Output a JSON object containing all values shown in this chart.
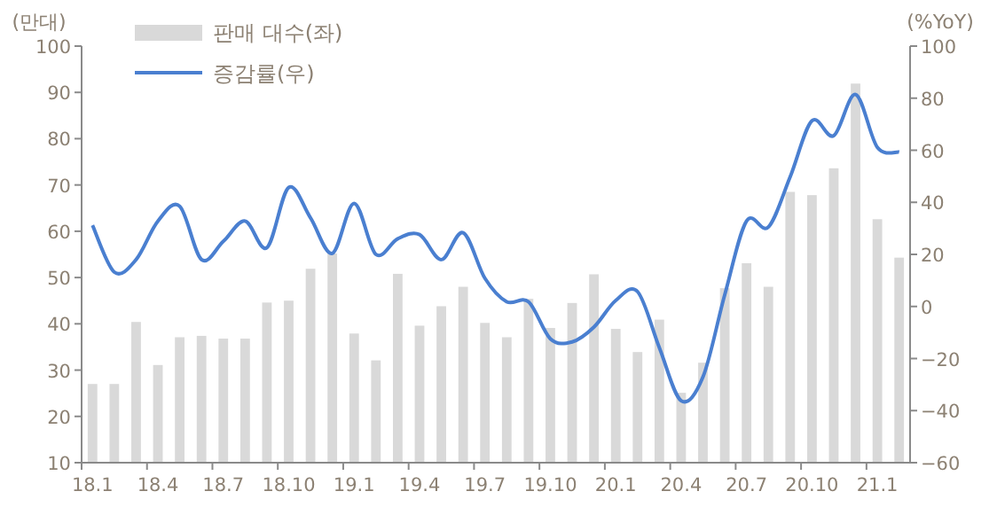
{
  "chart_data": {
    "type": "bar",
    "ylabel": "(만대)",
    "y2label": "(%YoY)",
    "legend": "top left",
    "categories": [
      "18.1",
      null,
      null,
      "18.4",
      null,
      null,
      "18.7",
      null,
      null,
      "18.10",
      null,
      null,
      "19.1",
      null,
      null,
      "19.4",
      null,
      null,
      "19.7",
      null,
      null,
      "19.10",
      null,
      null,
      "20.1",
      null,
      null,
      "20.4",
      null,
      null,
      "20.7",
      null,
      null,
      "20.10",
      null,
      null,
      "21.1",
      null
    ],
    "ylim": [
      10,
      100
    ],
    "yticks": [
      10,
      20,
      30,
      40,
      50,
      60,
      70,
      80,
      90,
      100
    ],
    "y2lim": [
      -60,
      100
    ],
    "y2ticks": [
      -60,
      -40,
      -20,
      0,
      20,
      40,
      60,
      80,
      100
    ],
    "series": [
      {
        "name": "판매 대수(좌)",
        "color": "#d9d9d9",
        "values": [
          27,
          27,
          40.4,
          31.1,
          37.1,
          37.4,
          36.8,
          36.8,
          44.6,
          45,
          51.9,
          55.2,
          37.9,
          32.1,
          50.8,
          39.6,
          43.8,
          48,
          40.2,
          37.1,
          45.4,
          39.1,
          44.5,
          50.7,
          38.9,
          33.9,
          40.9,
          25.1,
          31.6,
          47.7,
          53.1,
          48,
          68.5,
          67.8,
          73.6,
          91.9,
          62.6,
          54.3
        ]
      },
      {
        "name": "증감률(우)",
        "type": "line",
        "axis": "y2",
        "color": "#4a7fd0",
        "values": [
          31.2,
          13.2,
          18,
          32.8,
          38.5,
          18,
          25,
          32.8,
          22.6,
          45.7,
          34,
          20.4,
          39.6,
          20,
          26,
          27.6,
          18,
          28.3,
          10.8,
          1.8,
          1.8,
          -12.4,
          -13.6,
          -7.9,
          2.3,
          5.7,
          -15.8,
          -36.2,
          -27.1,
          4.5,
          32.8,
          30.5,
          49.8,
          71.3,
          65.6,
          81.4,
          61.1,
          59.3
        ]
      }
    ]
  }
}
